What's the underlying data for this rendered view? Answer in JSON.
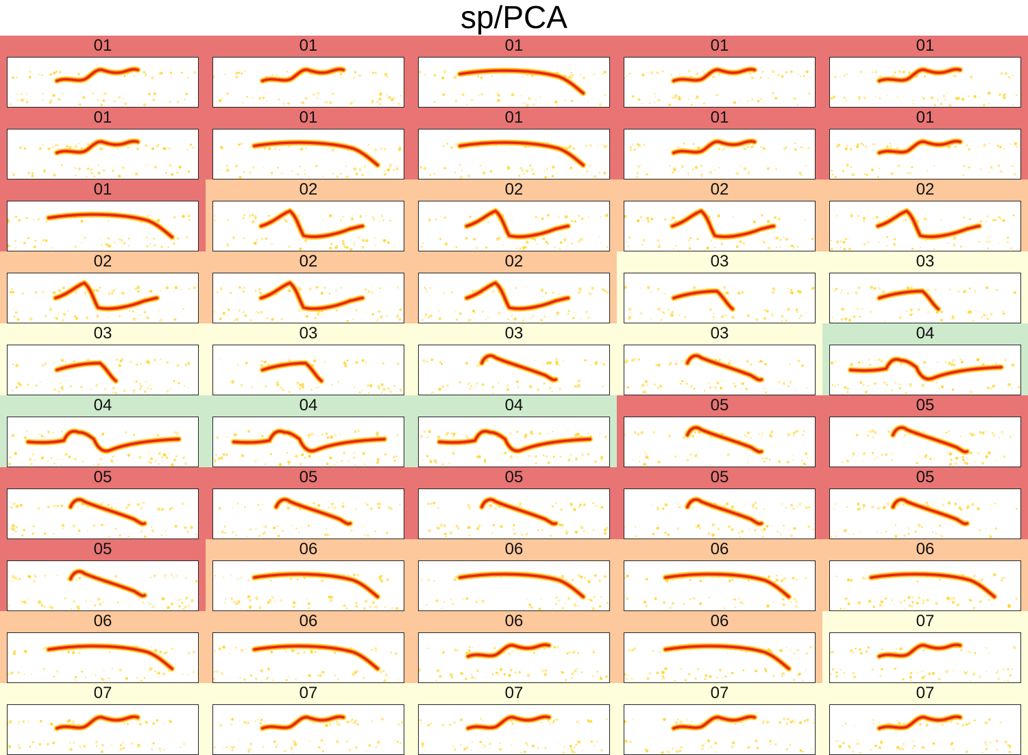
{
  "title": "sp/PCA",
  "colors": {
    "01": "#e87474",
    "02": "#fcc89c",
    "03": "#fefedc",
    "04": "#cdebcc",
    "05": "#e87474",
    "06": "#fcc89c",
    "07": "#fefedc"
  },
  "spectrogram_colors": {
    "noise": "#ffd21e",
    "mid": "#ff8a00",
    "core": "#e2231a"
  },
  "cells": [
    {
      "label": "01",
      "shape": "wave"
    },
    {
      "label": "01",
      "shape": "wave"
    },
    {
      "label": "01",
      "shape": "arch"
    },
    {
      "label": "01",
      "shape": "wave"
    },
    {
      "label": "01",
      "shape": "wave"
    },
    {
      "label": "01",
      "shape": "wave"
    },
    {
      "label": "01",
      "shape": "arch"
    },
    {
      "label": "01",
      "shape": "arch"
    },
    {
      "label": "01",
      "shape": "wave"
    },
    {
      "label": "01",
      "shape": "wave"
    },
    {
      "label": "01",
      "shape": "arch"
    },
    {
      "label": "02",
      "shape": "peak"
    },
    {
      "label": "02",
      "shape": "peak"
    },
    {
      "label": "02",
      "shape": "peak"
    },
    {
      "label": "02",
      "shape": "peak"
    },
    {
      "label": "02",
      "shape": "peak"
    },
    {
      "label": "02",
      "shape": "peak"
    },
    {
      "label": "02",
      "shape": "peak"
    },
    {
      "label": "03",
      "shape": "ramp"
    },
    {
      "label": "03",
      "shape": "ramp"
    },
    {
      "label": "03",
      "shape": "ramp"
    },
    {
      "label": "03",
      "shape": "ramp"
    },
    {
      "label": "03",
      "shape": "slope"
    },
    {
      "label": "03",
      "shape": "slope"
    },
    {
      "label": "04",
      "shape": "long"
    },
    {
      "label": "04",
      "shape": "long"
    },
    {
      "label": "04",
      "shape": "long"
    },
    {
      "label": "04",
      "shape": "long"
    },
    {
      "label": "05",
      "shape": "slope"
    },
    {
      "label": "05",
      "shape": "slope"
    },
    {
      "label": "05",
      "shape": "slope"
    },
    {
      "label": "05",
      "shape": "slope"
    },
    {
      "label": "05",
      "shape": "slope"
    },
    {
      "label": "05",
      "shape": "slope"
    },
    {
      "label": "05",
      "shape": "slope"
    },
    {
      "label": "05",
      "shape": "slope"
    },
    {
      "label": "06",
      "shape": "arch"
    },
    {
      "label": "06",
      "shape": "arch"
    },
    {
      "label": "06",
      "shape": "arch"
    },
    {
      "label": "06",
      "shape": "arch"
    },
    {
      "label": "06",
      "shape": "arch"
    },
    {
      "label": "06",
      "shape": "arch"
    },
    {
      "label": "06",
      "shape": "wave"
    },
    {
      "label": "06",
      "shape": "arch"
    },
    {
      "label": "07",
      "shape": "wave"
    },
    {
      "label": "07",
      "shape": "wave"
    },
    {
      "label": "07",
      "shape": "wave"
    },
    {
      "label": "07",
      "shape": "wave"
    },
    {
      "label": "07",
      "shape": "wave"
    },
    {
      "label": "07",
      "shape": "wave"
    }
  ]
}
